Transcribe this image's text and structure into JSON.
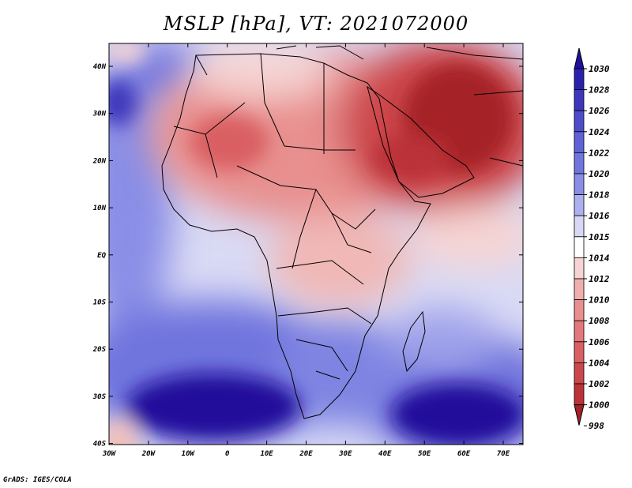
{
  "title": "MSLP [hPa], VT: 2021072000",
  "credit": "GrADS: IGES/COLA",
  "colors": {
    "background": "#ffffff",
    "outline": "#000000",
    "low_dark": "#a52027",
    "low_mid": "#e2787c",
    "neutral": "#ffffff",
    "high_mid": "#8a8ee6",
    "high_dark": "#20119b"
  },
  "map": {
    "lon_labels": [
      "30W",
      "20W",
      "10W",
      "0",
      "10E",
      "20E",
      "30E",
      "40E",
      "50E",
      "60E",
      "70E"
    ],
    "lat_labels": [
      "40N",
      "30N",
      "20N",
      "10N",
      "EQ",
      "10S",
      "20S",
      "30S",
      "40S"
    ]
  },
  "colorbar": {
    "levels": [
      "1030",
      "1028",
      "1026",
      "1024",
      "1022",
      "1020",
      "1018",
      "1016",
      "1015",
      "1014",
      "1012",
      "1010",
      "1008",
      "1006",
      "1004",
      "1002",
      "1000",
      "998"
    ],
    "colors": [
      "#20119b",
      "#2a22ad",
      "#3c37bd",
      "#4e4ccb",
      "#5f62d6",
      "#7075de",
      "#8a8ee6",
      "#adb0ee",
      "#d6d8f6",
      "#ffffff",
      "#f6d4d3",
      "#eeb0ae",
      "#e8908f",
      "#e2787c",
      "#d95f62",
      "#cc474c",
      "#bb3238",
      "#a52027"
    ]
  }
}
